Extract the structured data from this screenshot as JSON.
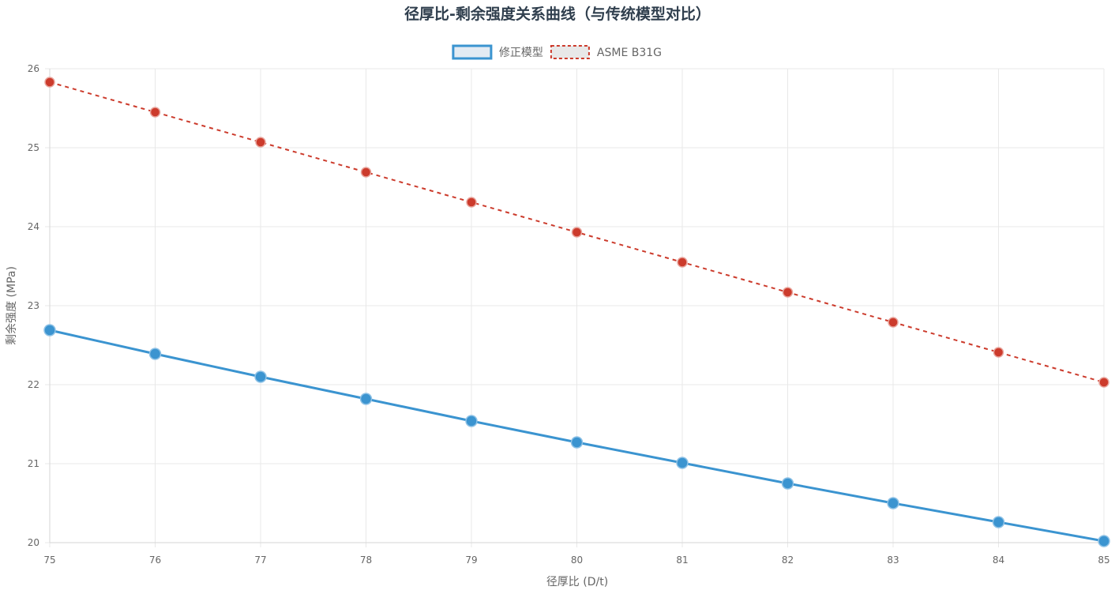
{
  "chart_data": {
    "type": "line",
    "title": "径厚比-剩余强度关系曲线（与传统模型对比）",
    "xlabel": "径厚比 (D/t)",
    "ylabel": "剩余强度 (MPa)",
    "x": [
      75,
      76,
      77,
      78,
      79,
      80,
      81,
      82,
      83,
      84,
      85
    ],
    "xlim": [
      75,
      85
    ],
    "ylim": [
      20,
      26
    ],
    "yticks": [
      20,
      21,
      22,
      23,
      24,
      25,
      26
    ],
    "grid": true,
    "legend_position": "top-center",
    "series": [
      {
        "name": "修正模型",
        "values": [
          22.69,
          22.39,
          22.1,
          21.82,
          21.54,
          21.27,
          21.01,
          20.75,
          20.5,
          20.26,
          20.02
        ],
        "color": "#3b94d0",
        "line_style": "solid"
      },
      {
        "name": "ASME B31G",
        "values": [
          25.83,
          25.45,
          25.07,
          24.69,
          24.31,
          23.93,
          23.55,
          23.17,
          22.79,
          22.41,
          22.03
        ],
        "color": "#cc3b2c",
        "line_style": "dashed"
      }
    ]
  }
}
